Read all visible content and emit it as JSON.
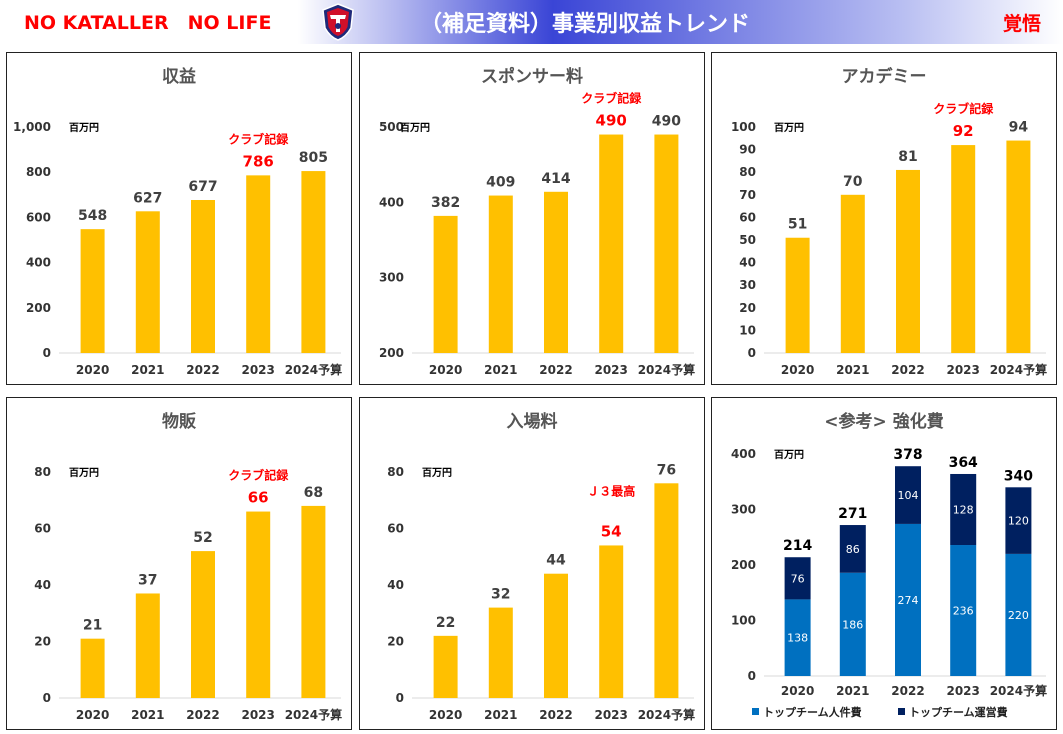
{
  "header": {
    "brand": "NO KATALLER　NO LIFE",
    "title": "（補足資料）事業別収益トレンド",
    "motto": "覚悟"
  },
  "colors": {
    "bar": "#ffc000",
    "highlight": "#ff0000",
    "personnel": "#0070c0",
    "operating": "#002060"
  },
  "chart_data": [
    {
      "type": "bar",
      "title": "収益",
      "unit": "百万円",
      "categories": [
        "2020",
        "2021",
        "2022",
        "2023",
        "2024予算"
      ],
      "values": [
        548,
        627,
        677,
        786,
        805
      ],
      "ylim": [
        0,
        1000
      ],
      "yticks": [
        "0",
        "200",
        "400",
        "600",
        "800",
        "1,000"
      ],
      "highlight_index": 3,
      "annotation": "クラブ記録",
      "grid": false
    },
    {
      "type": "bar",
      "title": "スポンサー料",
      "unit": "百万円",
      "categories": [
        "2020",
        "2021",
        "2022",
        "2023",
        "2024予算"
      ],
      "values": [
        382,
        409,
        414,
        490,
        490
      ],
      "ylim": [
        200,
        500
      ],
      "yticks": [
        "200",
        "300",
        "400",
        "500"
      ],
      "highlight_index": 3,
      "annotation": "クラブ記録",
      "grid": false
    },
    {
      "type": "bar",
      "title": "アカデミー",
      "unit": "百万円",
      "categories": [
        "2020",
        "2021",
        "2022",
        "2023",
        "2024予算"
      ],
      "values": [
        51,
        70,
        81,
        92,
        94
      ],
      "ylim": [
        0,
        100
      ],
      "yticks": [
        "0",
        "10",
        "20",
        "30",
        "40",
        "50",
        "60",
        "70",
        "80",
        "90",
        "100"
      ],
      "highlight_index": 3,
      "annotation": "クラブ記録",
      "grid": false
    },
    {
      "type": "bar",
      "title": "物販",
      "unit": "百万円",
      "categories": [
        "2020",
        "2021",
        "2022",
        "2023",
        "2024予算"
      ],
      "values": [
        21,
        37,
        52,
        66,
        68
      ],
      "ylim": [
        0,
        80
      ],
      "yticks": [
        "0",
        "20",
        "40",
        "60",
        "80"
      ],
      "highlight_index": 3,
      "annotation": "クラブ記録",
      "grid": false
    },
    {
      "type": "bar",
      "title": "入場料",
      "unit": "百万円",
      "categories": [
        "2020",
        "2021",
        "2022",
        "2023",
        "2024予算"
      ],
      "values": [
        22,
        32,
        44,
        54,
        76
      ],
      "ylim": [
        0,
        80
      ],
      "yticks": [
        "0",
        "20",
        "40",
        "60",
        "80"
      ],
      "highlight_index": 3,
      "annotation": "Ｊ３最高",
      "grid": false
    },
    {
      "type": "bar",
      "stacked": true,
      "title": "<参考> 強化費",
      "unit": "百万円",
      "categories": [
        "2020",
        "2021",
        "2022",
        "2023",
        "2024予算"
      ],
      "series": [
        {
          "name": "トップチーム人件費",
          "values": [
            138,
            186,
            274,
            236,
            220
          ]
        },
        {
          "name": "トップチーム運営費",
          "values": [
            76,
            86,
            104,
            128,
            120
          ]
        }
      ],
      "totals": [
        214,
        271,
        378,
        364,
        340
      ],
      "ylim": [
        0,
        400
      ],
      "yticks": [
        "0",
        "100",
        "200",
        "300",
        "400"
      ],
      "legend": "bottom",
      "grid": false
    }
  ]
}
